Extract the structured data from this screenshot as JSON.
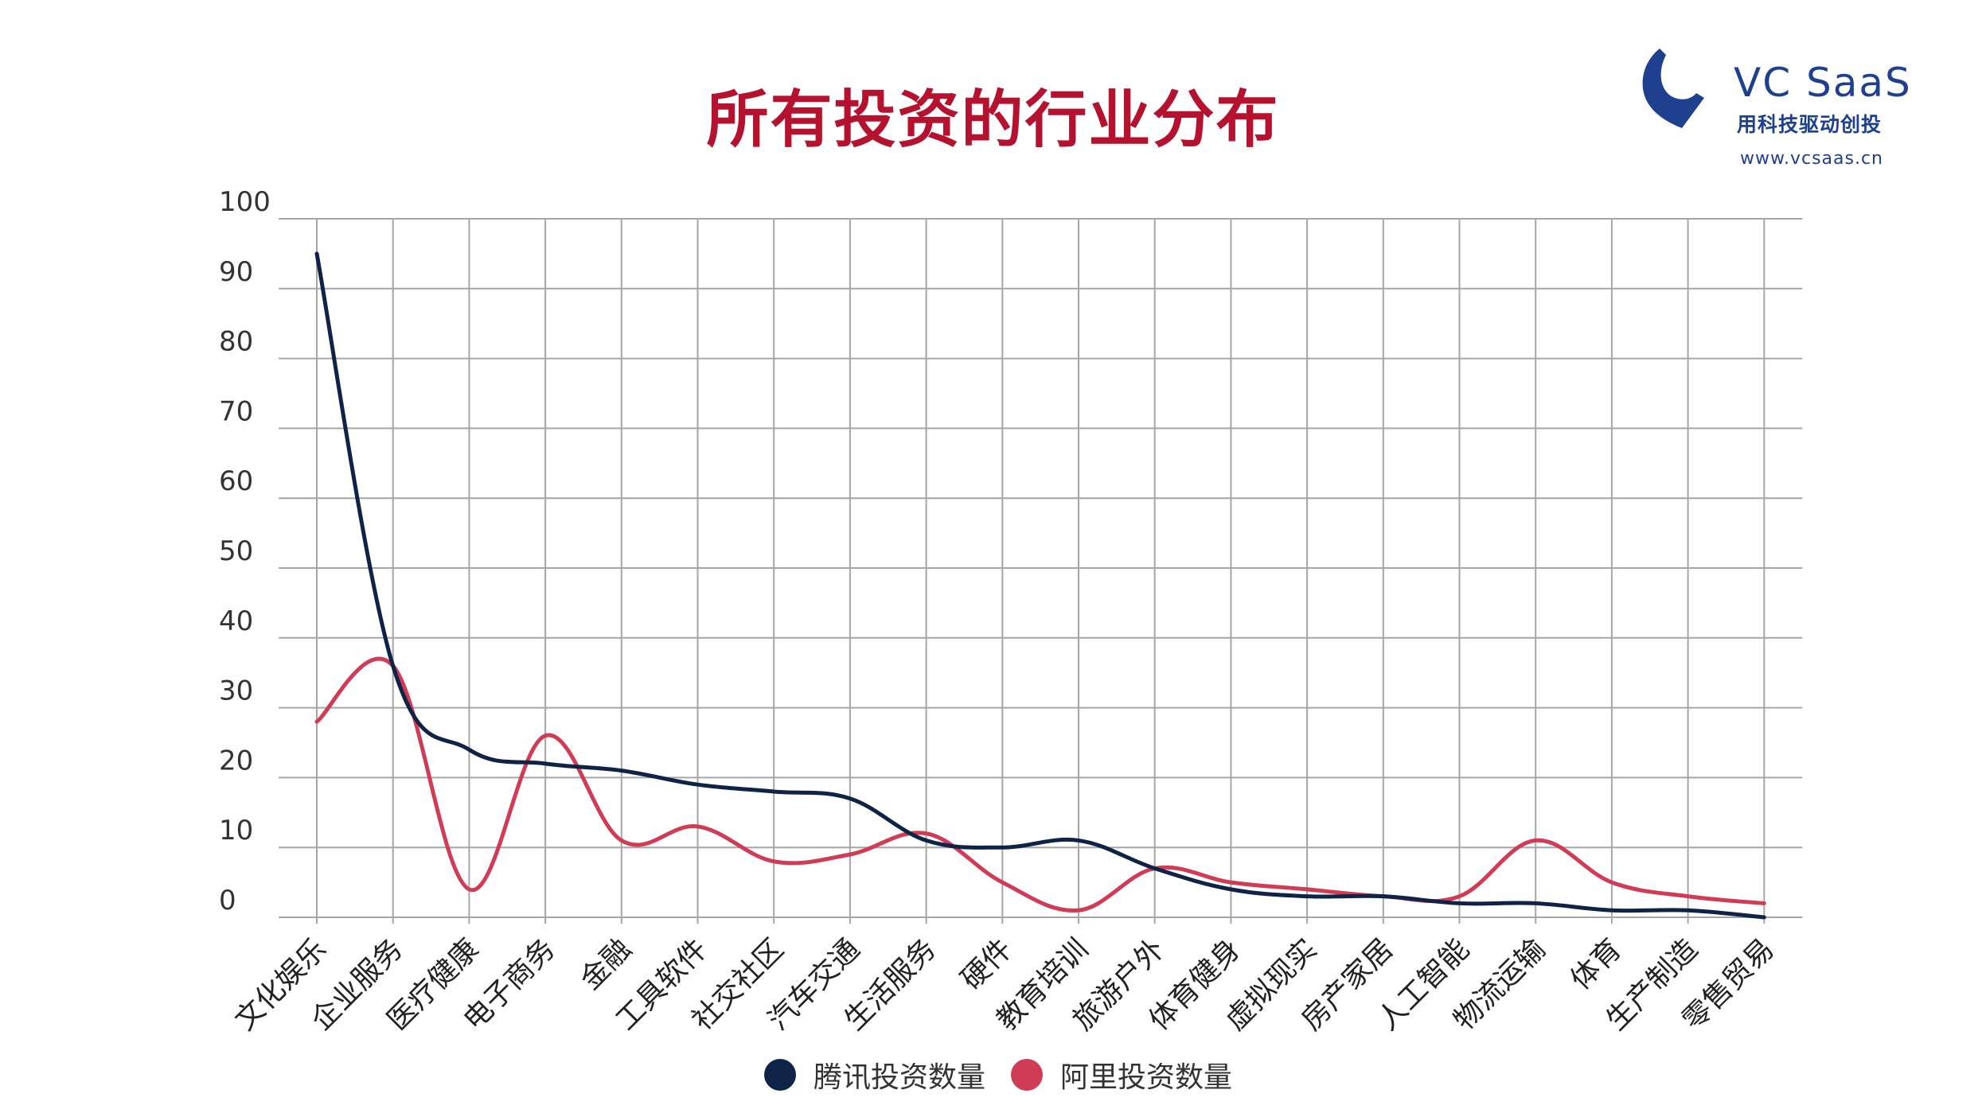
{
  "header": {
    "title": "所有投资的行业分布"
  },
  "logo": {
    "name": "VC  SaaS",
    "slogan": "用科技驱动创投",
    "url": "www.vcsaas.cn",
    "icon": "vc-saas-logo-icon",
    "color": "#1f3f8f"
  },
  "colors": {
    "title": "#b5122f",
    "grid": "#a6a6a6",
    "tencent": "#0f2347",
    "ali": "#d03c55"
  },
  "chart_data": {
    "type": "line",
    "title": "所有投资的行业分布",
    "categories": [
      "文化娱乐",
      "企业服务",
      "医疗健康",
      "电子商务",
      "金融",
      "工具软件",
      "社交社区",
      "汽车交通",
      "生活服务",
      "硬件",
      "教育培训",
      "旅游户外",
      "体育健身",
      "虚拟现实",
      "房产家居",
      "人工智能",
      "物流运输",
      "体育",
      "生产制造",
      "零售贸易"
    ],
    "series": [
      {
        "name": "腾讯投资数量",
        "color": "#0f2347",
        "values": [
          95,
          36,
          24,
          22,
          21,
          19,
          18,
          17,
          11,
          10,
          11,
          7,
          4,
          3,
          3,
          2,
          2,
          1,
          1,
          0
        ]
      },
      {
        "name": "阿里投资数量",
        "color": "#d03c55",
        "values": [
          28,
          36,
          4,
          26,
          11,
          13,
          8,
          9,
          12,
          5,
          1,
          7,
          5,
          4,
          3,
          3,
          11,
          5,
          3,
          2
        ]
      }
    ],
    "ylim": [
      0,
      100
    ],
    "yticks": [
      "0",
      "10",
      "20",
      "30",
      "40",
      "50",
      "60",
      "70",
      "80",
      "90",
      "100"
    ],
    "grid": true,
    "legend_position": "bottom-center",
    "xlabel": "",
    "ylabel": ""
  }
}
